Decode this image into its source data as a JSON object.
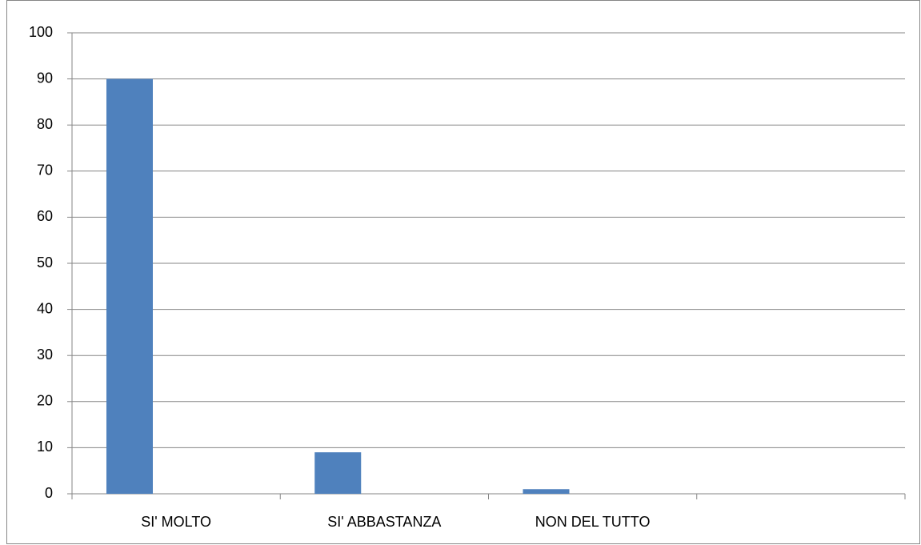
{
  "chart_data": {
    "type": "bar",
    "categories": [
      "SI' MOLTO",
      "SI' ABBASTANZA",
      "NON DEL TUTTO",
      null
    ],
    "values": [
      90,
      9,
      1,
      null
    ],
    "color": "#4f81bd",
    "ylim": [
      0,
      100
    ],
    "yticks": [
      0,
      10,
      20,
      30,
      40,
      50,
      60,
      70,
      80,
      90,
      100
    ],
    "grid": true
  }
}
